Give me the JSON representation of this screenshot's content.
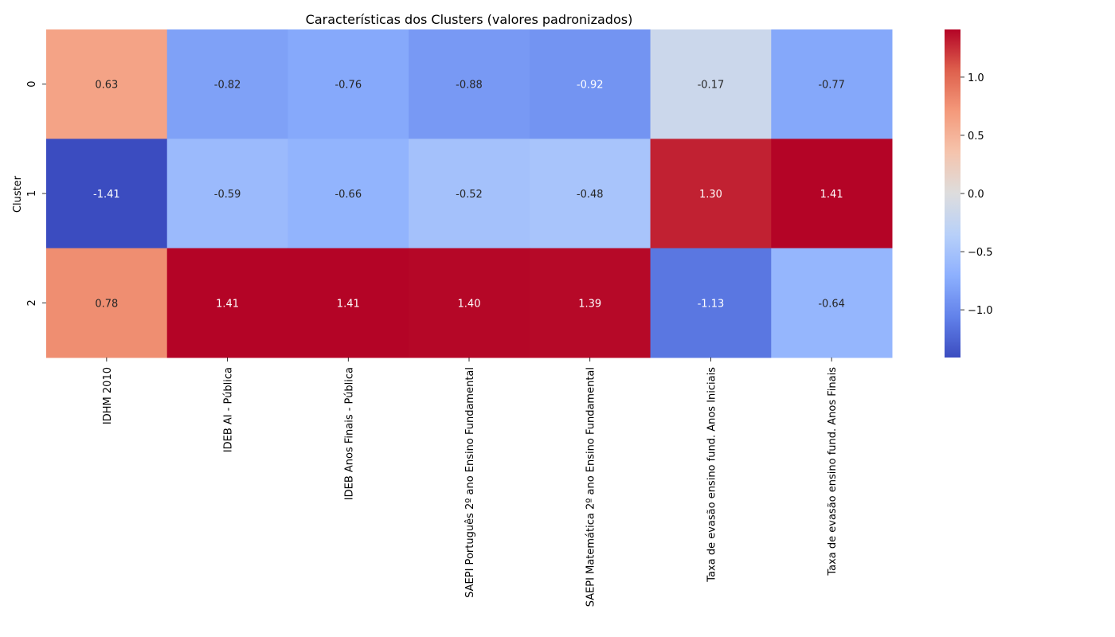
{
  "chart_data": {
    "type": "heatmap",
    "title": "Características dos Clusters (valores padronizados)",
    "ylabel": "Cluster",
    "xlabel": "",
    "rows": [
      "0",
      "1",
      "2"
    ],
    "columns": [
      "IDHM 2010",
      "IDEB AI - Pública",
      "IDEB Anos Finais - Pública",
      "SAEPI Português 2º ano Ensino Fundamental",
      "SAEPI Matemática 2º ano Ensino Fundamental",
      "Taxa de evasão ensino fund. Anos Iniciais",
      "Taxa de evasão ensino fund. Anos Finais"
    ],
    "values": [
      [
        0.63,
        -0.82,
        -0.76,
        -0.88,
        -0.92,
        -0.17,
        -0.77
      ],
      [
        -1.41,
        -0.59,
        -0.66,
        -0.52,
        -0.48,
        1.3,
        1.41
      ],
      [
        0.78,
        1.41,
        1.41,
        1.4,
        1.39,
        -1.13,
        -0.64
      ]
    ],
    "annotation_format": "0.00",
    "colormap": "coolwarm",
    "vmin": -1.41,
    "vmax": 1.41,
    "colorbar_ticks": [
      -1.0,
      -0.5,
      0.0,
      0.5,
      1.0
    ],
    "colorbar_tick_labels": [
      "−1.0",
      "−0.5",
      "0.0",
      "0.5",
      "1.0"
    ]
  }
}
